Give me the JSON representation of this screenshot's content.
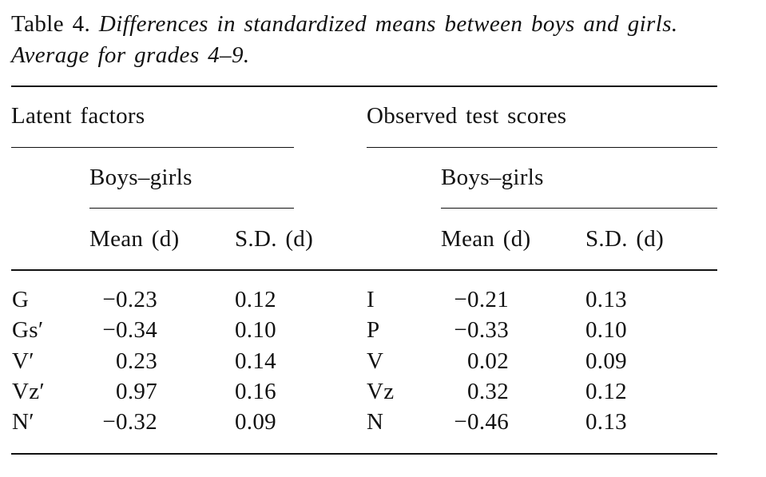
{
  "caption": {
    "label": "Table 4.",
    "title_line1": "Differences in standardized means between boys and girls.",
    "title_line2": "Average for grades 4–9."
  },
  "headers": {
    "latent": "Latent factors",
    "observed": "Observed test scores",
    "latent_sub": "Boys–girls",
    "observed_sub": "Boys–girls",
    "latent_mean": "Mean (d)",
    "latent_sd": "S.D. (d)",
    "observed_mean": "Mean (d)",
    "observed_sd": "S.D. (d)"
  },
  "rows": [
    {
      "factor": "G",
      "factor_mean": "−0.23",
      "factor_sd": "0.12",
      "test": "I",
      "test_mean": "−0.21",
      "test_sd": "0.13"
    },
    {
      "factor": "Gs′",
      "factor_mean": "−0.34",
      "factor_sd": "0.10",
      "test": "P",
      "test_mean": "−0.33",
      "test_sd": "0.10"
    },
    {
      "factor": "V′",
      "factor_mean": "0.23",
      "factor_sd": "0.14",
      "test": "V",
      "test_mean": "0.02",
      "test_sd": "0.09"
    },
    {
      "factor": "Vz′",
      "factor_mean": "0.97",
      "factor_sd": "0.16",
      "test": "Vz",
      "test_mean": "0.32",
      "test_sd": "0.12"
    },
    {
      "factor": "N′",
      "factor_mean": "−0.32",
      "factor_sd": "0.09",
      "test": "N",
      "test_mean": "−0.46",
      "test_sd": "0.13"
    }
  ]
}
